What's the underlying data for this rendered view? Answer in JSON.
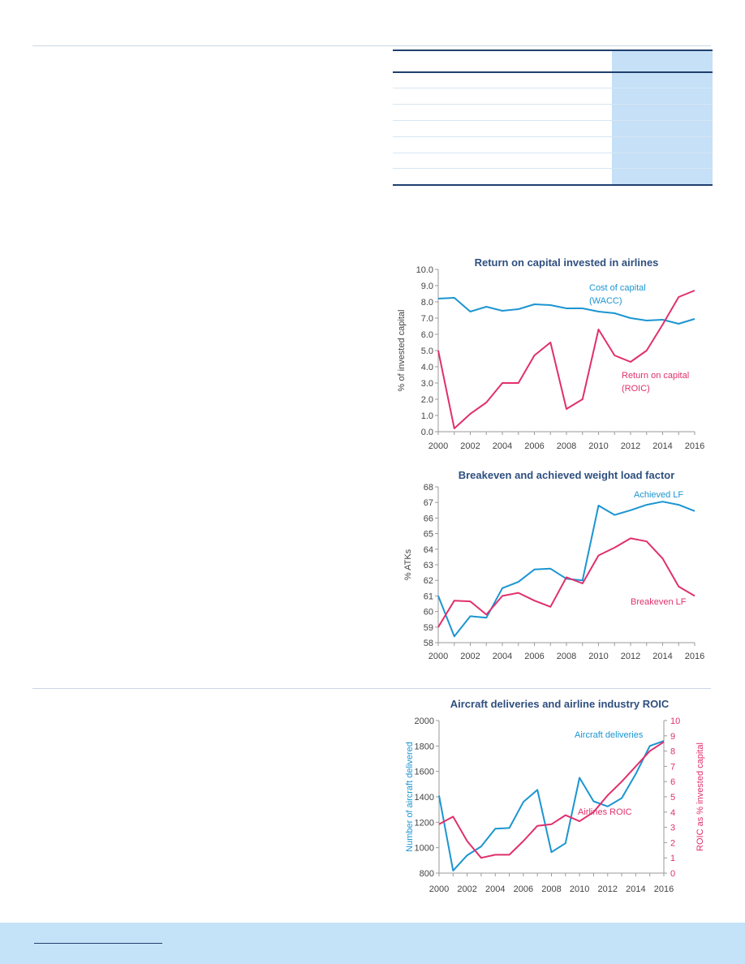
{
  "colors": {
    "navy": "#1f3f6e",
    "title": "#2f4f7f",
    "blue_series": "#1b95d1",
    "pink_series": "#e0306c",
    "axis_text_dark": "#444444",
    "axis_red": "#e0306c",
    "axis_blue": "#1b95d1",
    "table_shade": "#c5e0f7",
    "footer": "#c5e3f8"
  },
  "chart_data": [
    {
      "type": "line",
      "title": "Return on capital invested in airlines",
      "ylabel": "% of invested capital",
      "x": [
        2000,
        2001,
        2002,
        2003,
        2004,
        2005,
        2006,
        2007,
        2008,
        2009,
        2010,
        2011,
        2012,
        2013,
        2014,
        2015,
        2016
      ],
      "xticks": [
        "2000",
        "2002",
        "2004",
        "2006",
        "2008",
        "2010",
        "2012",
        "2014",
        "2016"
      ],
      "ylim": [
        0,
        10
      ],
      "yticks": [
        "0.0",
        "1.0",
        "2.0",
        "3.0",
        "4.0",
        "5.0",
        "6.0",
        "7.0",
        "8.0",
        "9.0",
        "10.0"
      ],
      "series": [
        {
          "name": "Cost of capital (WACC)",
          "label_lines": [
            "Cost of capital",
            "(WACC)"
          ],
          "values": [
            8.2,
            8.25,
            7.4,
            7.7,
            7.45,
            7.55,
            7.85,
            7.8,
            7.6,
            7.6,
            7.4,
            7.3,
            7.0,
            6.85,
            6.9,
            6.65,
            6.95
          ]
        },
        {
          "name": "Return on capital (ROIC)",
          "label_lines": [
            "Return on capital",
            "(ROIC)"
          ],
          "values": [
            5.0,
            0.2,
            1.1,
            1.8,
            3.0,
            3.0,
            4.7,
            5.5,
            1.4,
            2.0,
            6.3,
            4.7,
            4.3,
            5.0,
            6.6,
            8.3,
            8.7
          ]
        }
      ]
    },
    {
      "type": "line",
      "title": "Breakeven and achieved weight load factor",
      "ylabel": "% ATKs",
      "x": [
        2000,
        2001,
        2002,
        2003,
        2004,
        2005,
        2006,
        2007,
        2008,
        2009,
        2010,
        2011,
        2012,
        2013,
        2014,
        2015,
        2016
      ],
      "xticks": [
        "2000",
        "2002",
        "2004",
        "2006",
        "2008",
        "2010",
        "2012",
        "2014",
        "2016"
      ],
      "ylim": [
        58,
        68
      ],
      "yticks": [
        "58",
        "59",
        "60",
        "61",
        "62",
        "63",
        "64",
        "65",
        "66",
        "67",
        "68"
      ],
      "series": [
        {
          "name": "Achieved LF",
          "label_lines": [
            "Achieved LF"
          ],
          "values": [
            61.0,
            58.4,
            59.7,
            59.6,
            61.5,
            61.9,
            62.7,
            62.75,
            62.1,
            62.0,
            66.8,
            66.2,
            66.5,
            66.85,
            67.05,
            66.85,
            66.45
          ]
        },
        {
          "name": "Breakeven LF",
          "label_lines": [
            "Breakeven LF"
          ],
          "values": [
            59.0,
            60.7,
            60.65,
            59.8,
            61.0,
            61.2,
            60.7,
            60.3,
            62.2,
            61.8,
            63.6,
            64.1,
            64.7,
            64.5,
            63.4,
            61.6,
            61.0
          ]
        }
      ]
    },
    {
      "type": "line",
      "title": "Aircraft deliveries and airline industry ROIC",
      "ylabel": "Number of aircraft delivered",
      "y2label": "ROIC as % invested capital",
      "x": [
        2000,
        2001,
        2002,
        2003,
        2004,
        2005,
        2006,
        2007,
        2008,
        2009,
        2010,
        2011,
        2012,
        2013,
        2014,
        2015,
        2016
      ],
      "xticks": [
        "2000",
        "2002",
        "2004",
        "2006",
        "2008",
        "2010",
        "2012",
        "2014",
        "2016"
      ],
      "ylim": [
        800,
        2000
      ],
      "yticks": [
        "800",
        "1000",
        "1200",
        "1400",
        "1600",
        "1800",
        "2000"
      ],
      "y2lim": [
        0,
        10
      ],
      "y2ticks": [
        "0",
        "1",
        "2",
        "3",
        "4",
        "5",
        "6",
        "7",
        "8",
        "9",
        "10"
      ],
      "series": [
        {
          "name": "Aircraft deliveries",
          "label_lines": [
            "Aircraft deliveries"
          ],
          "axis": "left",
          "values": [
            1410,
            820,
            940,
            1010,
            1150,
            1155,
            1360,
            1455,
            965,
            1035,
            1550,
            1365,
            1325,
            1390,
            1580,
            1800,
            1840
          ]
        },
        {
          "name": "Airlines ROIC",
          "label_lines": [
            "Airlines ROIC"
          ],
          "axis": "right",
          "values": [
            3.2,
            3.7,
            2.1,
            1.0,
            1.2,
            1.2,
            2.1,
            3.1,
            3.2,
            3.8,
            3.4,
            4.0,
            5.1,
            6.0,
            7.0,
            8.0,
            8.6
          ]
        }
      ]
    }
  ]
}
